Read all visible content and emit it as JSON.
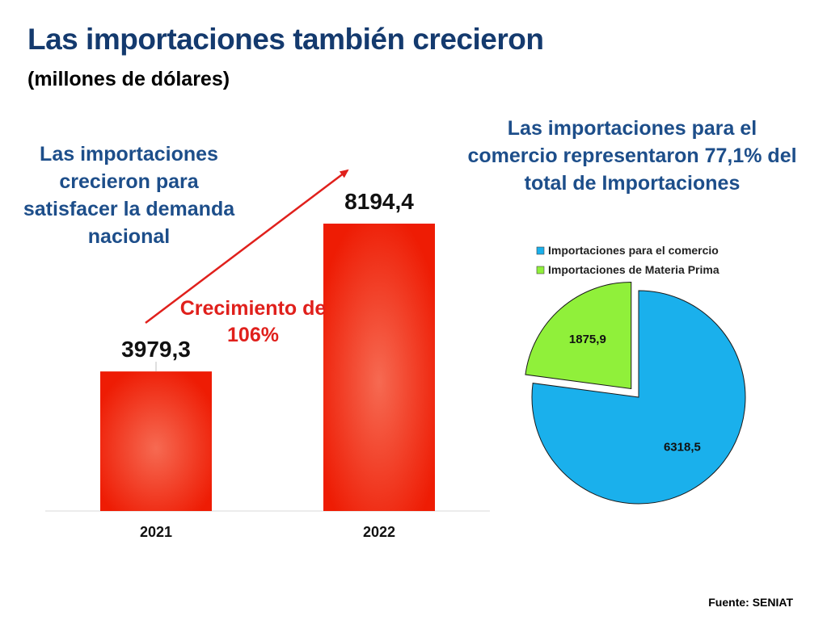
{
  "slide": {
    "title": "Las importaciones también crecieron",
    "subtitle": "(millones de dólares)",
    "left_note": "Las importaciones crecieron para satisfacer la demanda nacional",
    "right_note": "Las importaciones para el comercio representaron 77,1% del total de Importaciones",
    "growth_note": "Crecimiento de 106%",
    "source": "Fuente: SENIAT"
  },
  "colors": {
    "title": "#143a6e",
    "note": "#1d4e8a",
    "bar": "#f0220c",
    "arrow": "#e0201c",
    "slice_commerce": "#1ab0ec",
    "slice_raw_materials": "#90f03a"
  },
  "chart_data": [
    {
      "type": "bar",
      "categories": [
        "2021",
        "2022"
      ],
      "values": [
        3979.3,
        8194.4
      ],
      "value_labels": [
        "3979,3",
        "8194,4"
      ],
      "title": "",
      "xlabel": "",
      "ylabel": "",
      "ylim": [
        0,
        8194.4
      ],
      "grid": false
    },
    {
      "type": "pie",
      "labels": [
        "Importaciones para el comercio",
        "Importaciones de Materia Prima"
      ],
      "values": [
        6318.5,
        1875.9
      ],
      "value_labels": [
        "6318,5",
        "1875,9"
      ],
      "exploded": [
        false,
        true
      ],
      "legend_position": "top"
    }
  ]
}
